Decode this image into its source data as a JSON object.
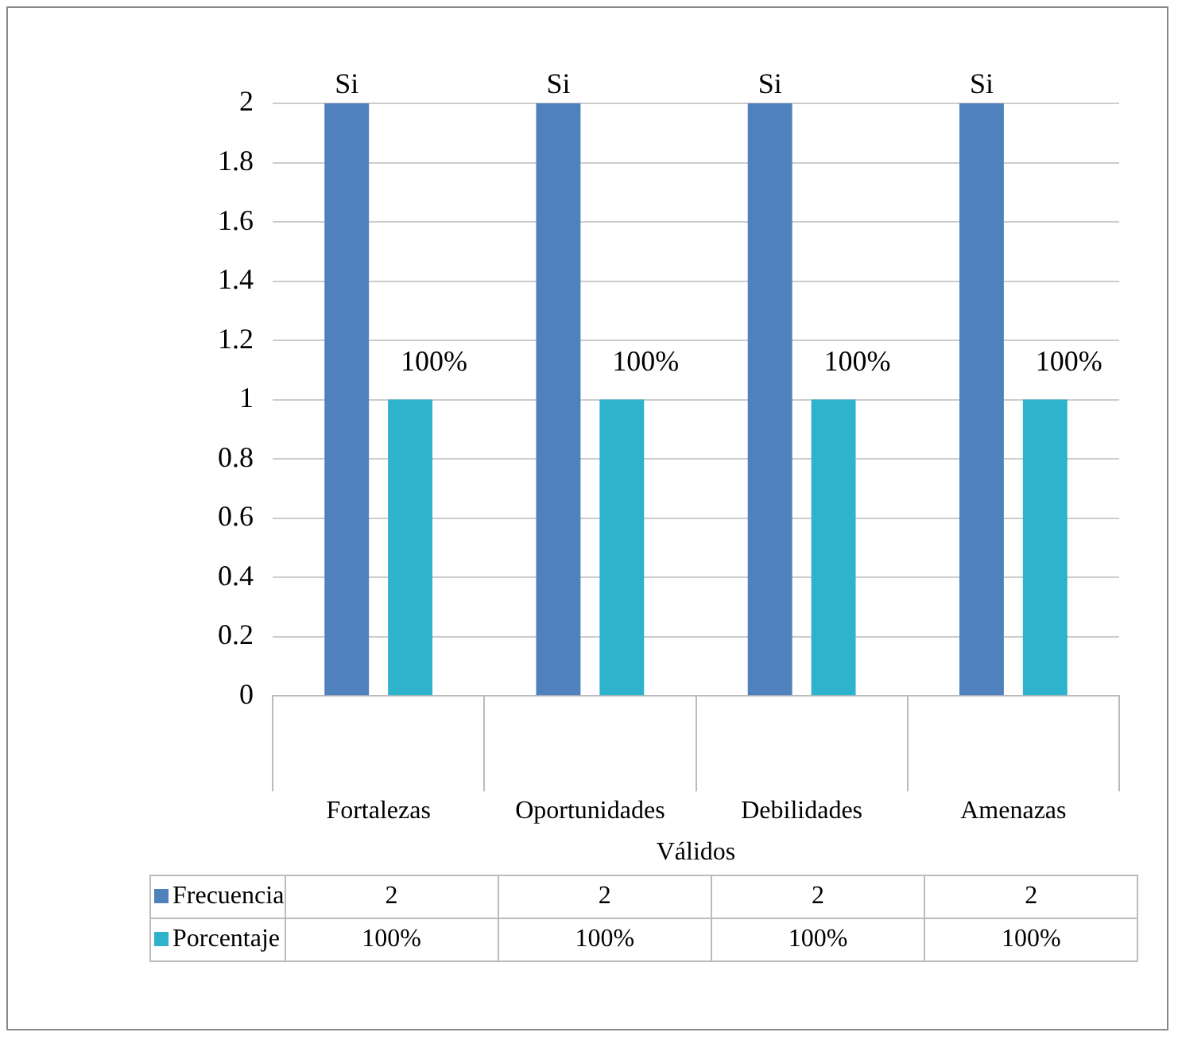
{
  "chart_data": {
    "type": "bar",
    "categories": [
      "Fortalezas",
      "Oportunidades",
      "Debilidades",
      "Amenazas"
    ],
    "xlabel": "Válidos",
    "series": [
      {
        "name": "Frecuencia",
        "color": "#4f81bd",
        "values": [
          2,
          2,
          2,
          2
        ],
        "value_labels": [
          "2",
          "2",
          "2",
          "2"
        ]
      },
      {
        "name": "Porcentaje",
        "color": "#2fb2cc",
        "values": [
          1,
          1,
          1,
          1
        ],
        "value_labels": [
          "100%",
          "100%",
          "100%",
          "100%"
        ]
      }
    ],
    "annotations": [
      "Si",
      "Si",
      "Si",
      "Si"
    ],
    "ylim": [
      0,
      2
    ],
    "yticks": [
      0,
      0.2,
      0.4,
      0.6,
      0.8,
      1,
      1.2,
      1.4,
      1.6,
      1.8,
      2
    ],
    "grid": "y",
    "legend": "bottom"
  }
}
